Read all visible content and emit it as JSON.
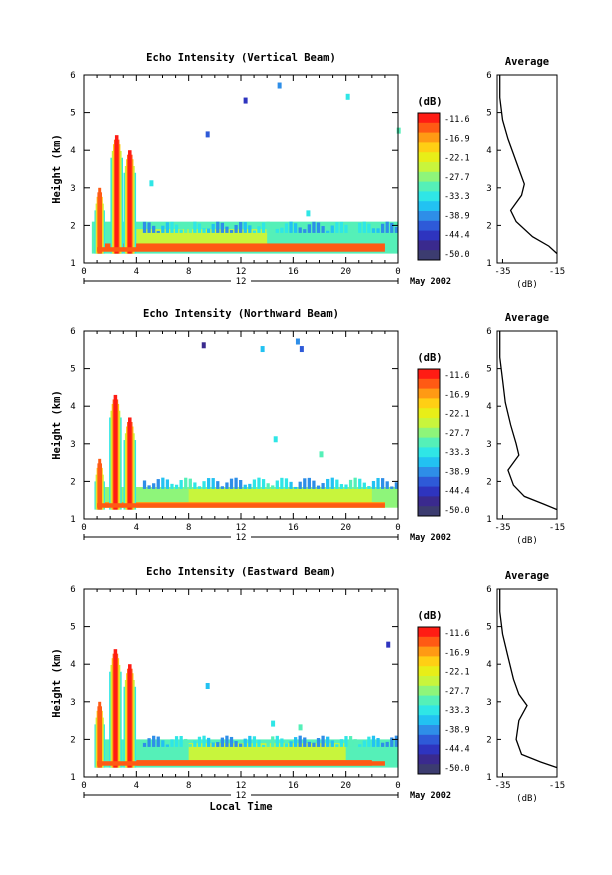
{
  "figure": {
    "xlabel": "Local Time",
    "colorbar_units": "(dB)",
    "colorbar_ticks": [
      "-11.6",
      "-16.9",
      "-22.1",
      "-27.7",
      "-33.3",
      "-38.9",
      "-44.4",
      "-50.0"
    ],
    "colors": [
      "#ff1c14",
      "#ff5a14",
      "#ff9a14",
      "#ffcf14",
      "#e8ee18",
      "#c8f53c",
      "#8ef57a",
      "#55f0b8",
      "#2fe6e6",
      "#22c2f2",
      "#2e8ee8",
      "#2e5ad8",
      "#2e34bf",
      "#3a2a8e",
      "#3c3c70"
    ],
    "day_label": "12",
    "month_label": "May 2002",
    "x_ticks": [
      "0",
      "4",
      "8",
      "12",
      "16",
      "20",
      "0"
    ],
    "y_ticks": [
      "1",
      "2",
      "3",
      "4",
      "5",
      "6"
    ],
    "avg_title": "Average",
    "avg_xlabel": "(dB)",
    "avg_xticks": [
      "-35",
      "-15"
    ]
  },
  "chart_data": [
    {
      "type": "heatmap",
      "title": "Echo Intensity (Vertical Beam)",
      "xlabel": "",
      "ylabel": "Height (km)",
      "xlim": [
        0,
        24
      ],
      "ylim": [
        1,
        6
      ],
      "clim": [
        -50,
        -11.6
      ],
      "layers": [
        {
          "x0": 0.6,
          "x1": 24,
          "y0": 1.25,
          "y1": 2.1,
          "db": -30
        },
        {
          "x0": 4,
          "x1": 14,
          "y0": 1.4,
          "y1": 1.9,
          "db": -25
        },
        {
          "x0": 1,
          "x1": 23,
          "y0": 1.38,
          "y1": 1.52,
          "db": -15
        }
      ],
      "columns": [
        {
          "t": 1.2,
          "w": 0.5,
          "top": 3.0,
          "db": -13
        },
        {
          "t": 2.5,
          "w": 0.6,
          "top": 4.4,
          "db": -12
        },
        {
          "t": 3.5,
          "w": 0.6,
          "top": 4.0,
          "db": -12
        }
      ],
      "sparse": [
        {
          "x": 9.3,
          "y": 4.5,
          "db": -42
        },
        {
          "x": 12.2,
          "y": 5.4,
          "db": -44
        },
        {
          "x": 14.8,
          "y": 5.8,
          "db": -40
        },
        {
          "x": 20.0,
          "y": 5.5,
          "db": -34
        },
        {
          "x": 23.9,
          "y": 4.6,
          "db": -30
        },
        {
          "x": 17.0,
          "y": 2.4,
          "db": -33
        },
        {
          "x": 5.0,
          "y": 3.2,
          "db": -33
        }
      ],
      "average_profile": {
        "x": [
          -15,
          -18,
          -24,
          -30,
          -32,
          -28,
          -27,
          -29,
          -31,
          -33,
          -35,
          -36,
          -36
        ],
        "y": [
          1.25,
          1.45,
          1.7,
          2.1,
          2.4,
          2.8,
          3.1,
          3.5,
          3.9,
          4.3,
          4.8,
          5.4,
          6.0
        ]
      }
    },
    {
      "type": "heatmap",
      "title": "Echo Intensity (Northward Beam)",
      "xlabel": "",
      "ylabel": "Height (km)",
      "xlim": [
        0,
        24
      ],
      "ylim": [
        1,
        6
      ],
      "clim": [
        -50,
        -11.6
      ],
      "layers": [
        {
          "x0": 0.8,
          "x1": 24,
          "y0": 1.3,
          "y1": 1.85,
          "db": -29
        },
        {
          "x0": 8,
          "x1": 22,
          "y0": 1.4,
          "y1": 1.8,
          "db": -24
        },
        {
          "x0": 1,
          "x1": 23,
          "y0": 1.3,
          "y1": 1.45,
          "db": -16
        }
      ],
      "columns": [
        {
          "t": 1.2,
          "w": 0.5,
          "top": 2.6,
          "db": -14
        },
        {
          "t": 2.4,
          "w": 0.6,
          "top": 4.3,
          "db": -12
        },
        {
          "t": 3.5,
          "w": 0.6,
          "top": 3.7,
          "db": -12
        }
      ],
      "sparse": [
        {
          "x": 9.0,
          "y": 5.7,
          "db": -46
        },
        {
          "x": 16.2,
          "y": 5.8,
          "db": -40
        },
        {
          "x": 16.5,
          "y": 5.6,
          "db": -42
        },
        {
          "x": 13.5,
          "y": 5.6,
          "db": -35
        },
        {
          "x": 14.5,
          "y": 3.2,
          "db": -33
        },
        {
          "x": 18.0,
          "y": 2.8,
          "db": -32
        }
      ],
      "average_profile": {
        "x": [
          -15,
          -20,
          -27,
          -31,
          -33,
          -29,
          -30,
          -32,
          -34,
          -35,
          -36,
          -36
        ],
        "y": [
          1.25,
          1.4,
          1.6,
          1.9,
          2.3,
          2.7,
          3.0,
          3.5,
          4.1,
          4.7,
          5.3,
          6.0
        ]
      }
    },
    {
      "type": "heatmap",
      "title": "Echo Intensity (Eastward Beam)",
      "xlabel": "Local Time",
      "ylabel": "Height (km)",
      "xlim": [
        0,
        24
      ],
      "ylim": [
        1,
        6
      ],
      "clim": [
        -50,
        -11.6
      ],
      "layers": [
        {
          "x0": 0.8,
          "x1": 24,
          "y0": 1.25,
          "y1": 2.0,
          "db": -30
        },
        {
          "x0": 8,
          "x1": 20,
          "y0": 1.4,
          "y1": 1.9,
          "db": -24
        },
        {
          "x0": 4,
          "x1": 22,
          "y0": 1.3,
          "y1": 1.45,
          "db": -15
        }
      ],
      "columns": [
        {
          "t": 1.2,
          "w": 0.5,
          "top": 3.0,
          "db": -13
        },
        {
          "t": 2.4,
          "w": 0.6,
          "top": 4.4,
          "db": -12
        },
        {
          "t": 3.5,
          "w": 0.6,
          "top": 4.0,
          "db": -12
        }
      ],
      "sparse": [
        {
          "x": 23.1,
          "y": 4.6,
          "db": -44
        },
        {
          "x": 9.3,
          "y": 3.5,
          "db": -36
        },
        {
          "x": 14.3,
          "y": 2.5,
          "db": -33
        },
        {
          "x": 16.4,
          "y": 2.4,
          "db": -32
        }
      ],
      "average_profile": {
        "x": [
          -15,
          -21,
          -28,
          -30,
          -29,
          -26,
          -29,
          -31,
          -33,
          -35,
          -36,
          -36
        ],
        "y": [
          1.25,
          1.4,
          1.6,
          2.0,
          2.5,
          2.9,
          3.2,
          3.6,
          4.2,
          4.8,
          5.4,
          6.0
        ]
      }
    }
  ]
}
